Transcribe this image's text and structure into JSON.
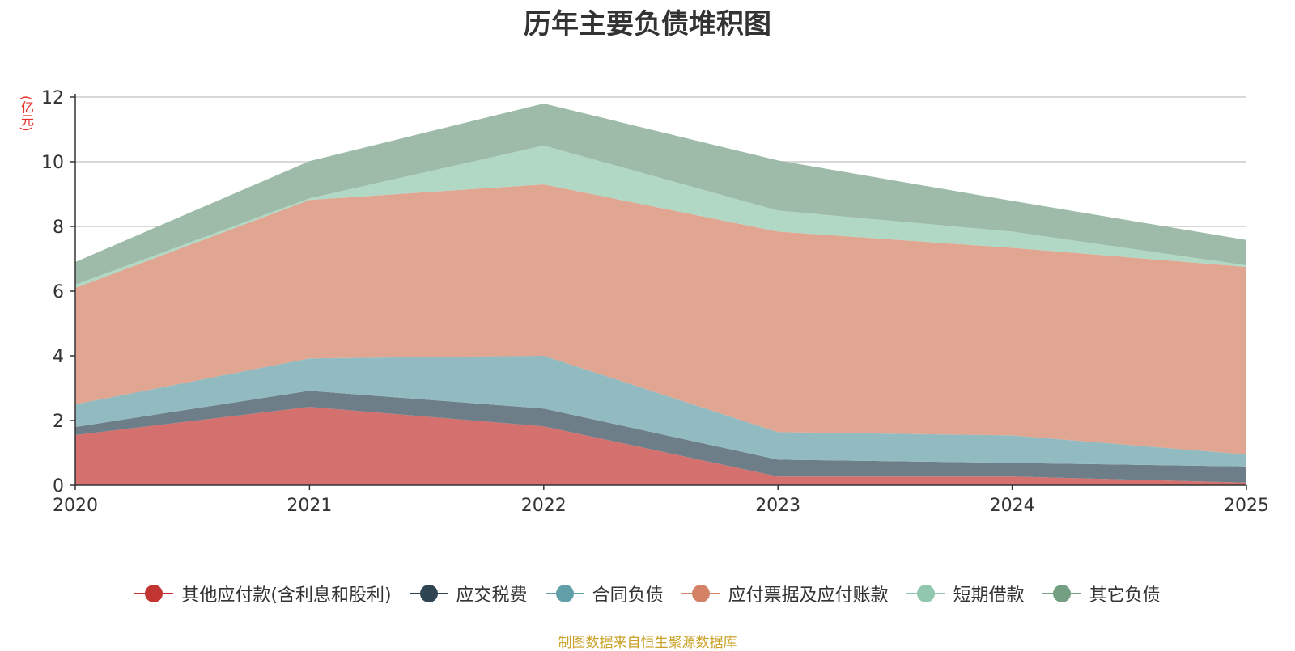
{
  "chart_data": {
    "type": "area",
    "title": "历年主要负债堆积图",
    "ylabel": "(亿元)",
    "xlabel": "",
    "stacked": true,
    "categories": [
      "2020",
      "2021",
      "2022",
      "2023",
      "2024",
      "2025"
    ],
    "ylim": [
      0,
      12
    ],
    "yticks": [
      0,
      2,
      4,
      6,
      8,
      10,
      12
    ],
    "grid": true,
    "legend_position": "bottom",
    "series": [
      {
        "name": "其他应付款(含利息和股利)",
        "color": "#c23531",
        "fill": "#d4706d",
        "values": [
          1.55,
          2.42,
          1.82,
          0.27,
          0.27,
          0.08
        ]
      },
      {
        "name": "应交税费",
        "color": "#2f4554",
        "fill": "#6e7e89",
        "values": [
          0.25,
          0.5,
          0.55,
          0.52,
          0.42,
          0.5
        ]
      },
      {
        "name": "合同负债",
        "color": "#61a0a8",
        "fill": "#91bbc1",
        "values": [
          0.7,
          1.0,
          1.63,
          0.85,
          0.85,
          0.37
        ]
      },
      {
        "name": "应付票据及应付账款",
        "color": "#d48265",
        "fill": "#e0a691",
        "values": [
          3.6,
          4.9,
          5.3,
          6.2,
          5.8,
          5.8
        ]
      },
      {
        "name": "短期借款",
        "color": "#91c7ae",
        "fill": "#b0d8c5",
        "values": [
          0.1,
          0.05,
          1.2,
          0.65,
          0.5,
          0.05
        ]
      },
      {
        "name": "其它负债",
        "color": "#749f83",
        "fill": "#9dbba8",
        "values": [
          0.7,
          1.15,
          1.3,
          1.55,
          0.95,
          0.78
        ]
      }
    ]
  },
  "source_note": "制图数据来自恒生聚源数据库"
}
